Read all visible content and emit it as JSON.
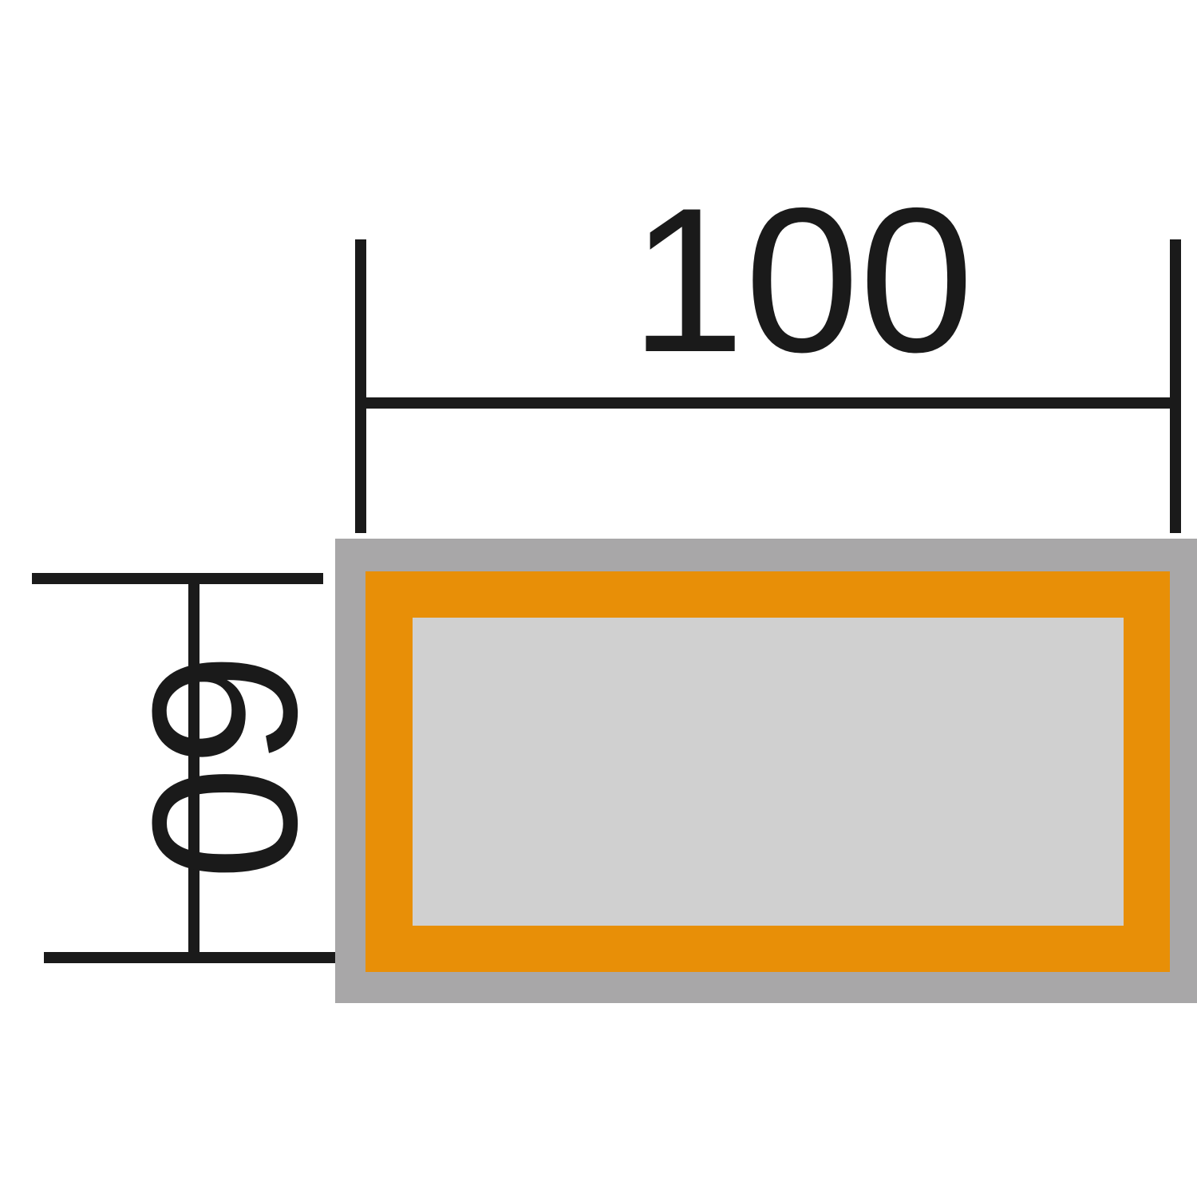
{
  "dimensions": {
    "width_label": "100",
    "height_label": "60"
  },
  "colors": {
    "line": "#1a1a1a",
    "outer_frame": "#a8a7a8",
    "border": "#e88f07",
    "inner_panel": "#d0d0d0"
  }
}
